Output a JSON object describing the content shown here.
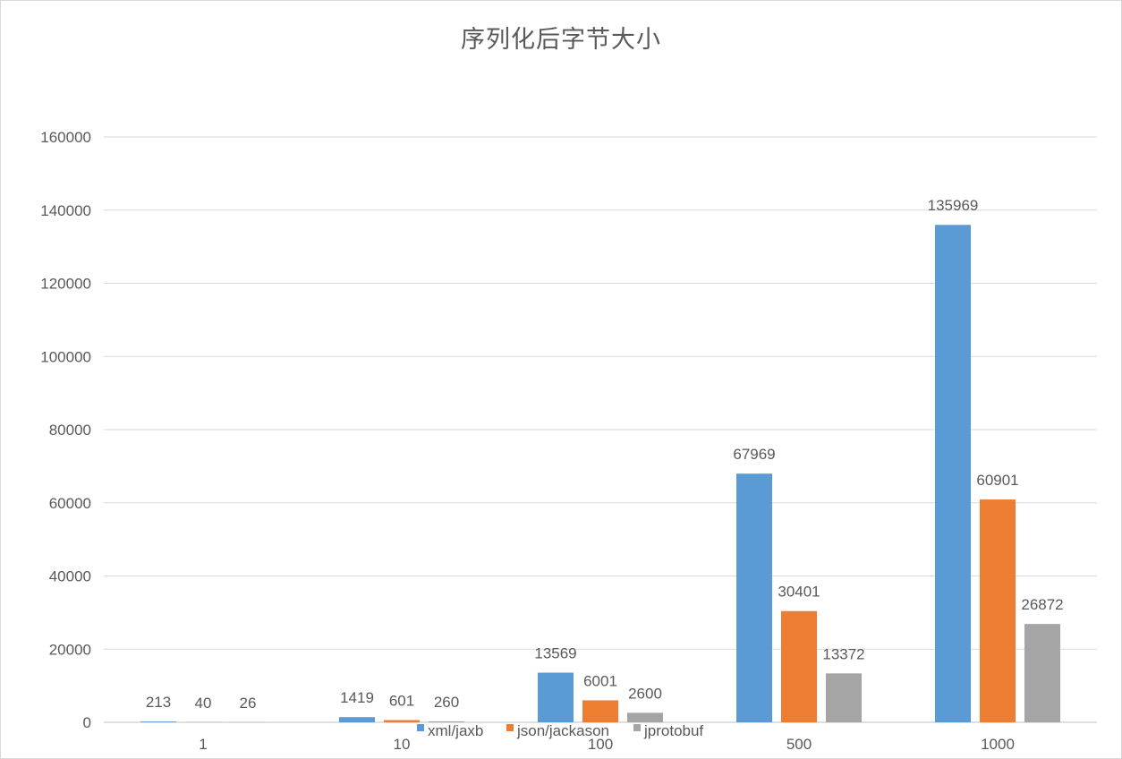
{
  "chart_data": {
    "type": "bar",
    "title": "序列化后字节大小",
    "xlabel": "",
    "ylabel": "",
    "categories": [
      "1",
      "10",
      "100",
      "500",
      "1000"
    ],
    "series": [
      {
        "name": "xml/jaxb",
        "color": "#5b9bd5",
        "values": [
          213,
          1419,
          13569,
          67969,
          135969
        ]
      },
      {
        "name": "json/jackason",
        "color": "#ed7d31",
        "values": [
          40,
          601,
          6001,
          30401,
          60901
        ]
      },
      {
        "name": "jprotobuf",
        "color": "#a5a5a5",
        "values": [
          26,
          260,
          2600,
          13372,
          26872
        ]
      }
    ],
    "ylim": [
      0,
      160000
    ],
    "yticks": [
      0,
      20000,
      40000,
      60000,
      80000,
      100000,
      120000,
      140000,
      160000
    ],
    "grid": true,
    "legend_position": "bottom",
    "data_labels": true
  }
}
